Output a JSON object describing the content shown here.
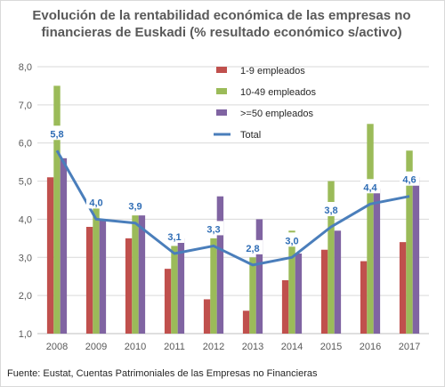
{
  "chart_data": {
    "type": "bar",
    "title_lines": [
      "Evolución de la rentabilidad económica de las empresas no",
      "financieras de Euskadi (% resultado económico s/activo)"
    ],
    "categories": [
      "2008",
      "2009",
      "2010",
      "2011",
      "2012",
      "2013",
      "2014",
      "2015",
      "2016",
      "2017"
    ],
    "y_ticks": [
      "1,0",
      "2,0",
      "3,0",
      "4,0",
      "5,0",
      "6,0",
      "7,0",
      "8,0"
    ],
    "ylim": [
      1,
      8
    ],
    "grid": true,
    "legend_position": "top-right",
    "series": [
      {
        "name": "1-9 empleados",
        "type": "bar",
        "color": "#c0504d",
        "values": [
          5.1,
          3.8,
          3.5,
          2.7,
          1.9,
          1.6,
          2.4,
          3.2,
          2.9,
          3.4
        ]
      },
      {
        "name": "10-49 empleados",
        "type": "bar",
        "color": "#9bbb59",
        "values": [
          7.5,
          4.4,
          4.1,
          3.3,
          3.5,
          3.0,
          3.7,
          5.0,
          6.5,
          5.8
        ]
      },
      {
        "name": ">=50 empleados",
        "type": "bar",
        "color": "#8064a2",
        "values": [
          5.6,
          4.0,
          4.1,
          3.5,
          4.6,
          4.0,
          3.1,
          3.7,
          4.8,
          5.1
        ]
      },
      {
        "name": "Total",
        "type": "line",
        "color": "#4a7ebb",
        "values": [
          5.8,
          4.0,
          3.9,
          3.1,
          3.3,
          2.8,
          3.0,
          3.8,
          4.4,
          4.6
        ],
        "labels": [
          "5,8",
          "4,0",
          "3,9",
          "3,1",
          "3,3",
          "2,8",
          "3,0",
          "3,8",
          "4,4",
          "4,6"
        ]
      }
    ]
  },
  "footer": {
    "source": "Fuente: Eustat, Cuentas Patrimoniales de las Empresas no Financieras"
  }
}
